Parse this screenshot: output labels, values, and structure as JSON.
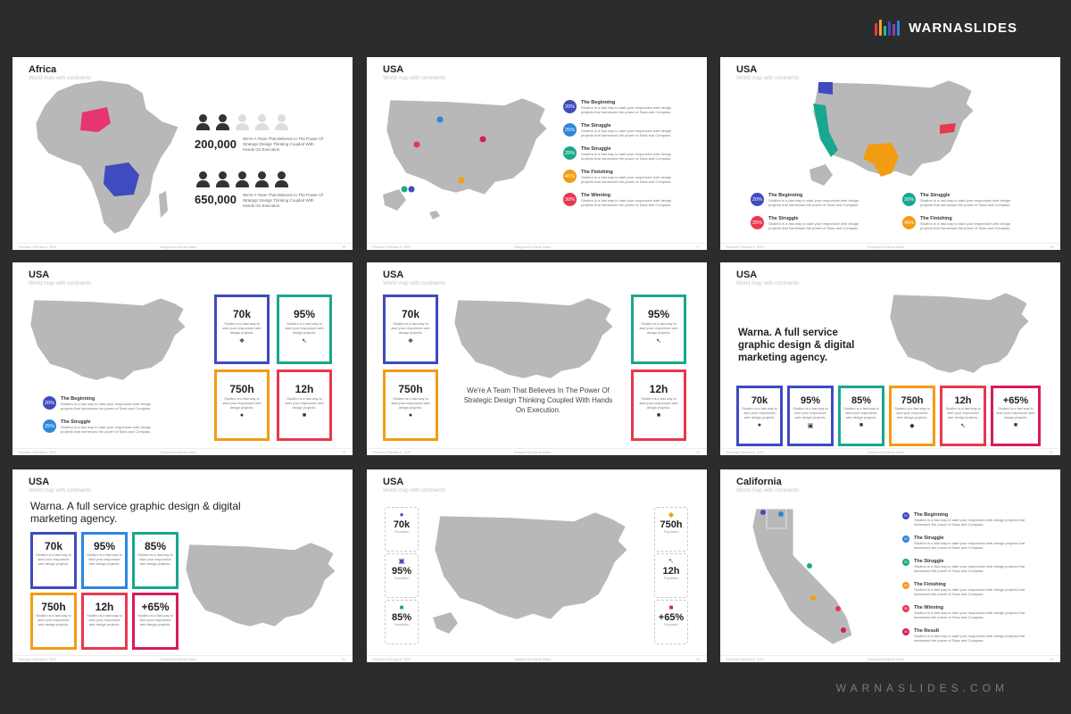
{
  "brand": {
    "name": "WARNASLIDES",
    "footer": "WARNASLIDES.COM",
    "bar_colors": [
      "#e8384f",
      "#f5a623",
      "#2bb5a0",
      "#3f4bbf",
      "#8e44ad",
      "#2e86de"
    ]
  },
  "colors": {
    "blue": "#3f4bbf",
    "teal": "#17a88f",
    "green": "#1fa88a",
    "orange": "#f39c12",
    "red": "#e8384f",
    "pink": "#d81b60",
    "magenta": "#e6356f",
    "map_gray": "#b8b8b8"
  },
  "footer": {
    "date": "Thursday, February 6, 2020",
    "made_by": "Designed by Warna Slides"
  },
  "slides": {
    "s1": {
      "title": "Africa",
      "subtitle": "World map with continents",
      "stat1": {
        "value": "200,000",
        "desc": "We're A Team That Believes In The Power Of Strategic Design Thinking Coupled With Hands On Execution."
      },
      "stat2": {
        "value": "650,000",
        "desc": "We're A Team That Believes In The Power Of Strategic Design Thinking Coupled With Hands On Execution."
      },
      "page": "16"
    },
    "s2": {
      "title": "USA",
      "subtitle": "World map with continents",
      "items": [
        {
          "pct": "20%",
          "title": "The Beginning",
          "desc": "Studbro is a fast way to start your responsive web design projects that harnesses the power of Sass and Compass."
        },
        {
          "pct": "25%",
          "title": "The Struggle",
          "desc": "Studbro is a fast way to start your responsive web design projects that harnesses the power of Sass and Compass."
        },
        {
          "pct": "20%",
          "title": "The Struggle",
          "desc": "Studbro is a fast way to start your responsive web design projects that harnesses the power of Sass and Compass."
        },
        {
          "pct": "45%",
          "title": "The Finishing",
          "desc": "Studbro is a fast way to start your responsive web design projects that harnesses the power of Sass and Compass."
        },
        {
          "pct": "30%",
          "title": "The Winning",
          "desc": "Studbro is a fast way to start your responsive web design projects that harnesses the power of Sass and Compass."
        }
      ],
      "page": "17"
    },
    "s3": {
      "title": "USA",
      "subtitle": "World map with continents",
      "items": [
        {
          "pct": "20%",
          "title": "The Beginning",
          "desc": "Studbro is a fast way to start your responsive web design projects that harnesses the power of Sass and Compass."
        },
        {
          "pct": "25%",
          "title": "The Struggle",
          "desc": "Studbro is a fast way to start your responsive web design projects that harnesses the power of Sass and Compass."
        },
        {
          "pct": "20%",
          "title": "The Struggle",
          "desc": "Studbro is a fast way to start your responsive web design projects that harnesses the power of Sass and Compass."
        },
        {
          "pct": "45%",
          "title": "The Finishing",
          "desc": "Studbro is a fast way to start your responsive web design projects that harnesses the power of Sass and Compass."
        }
      ],
      "page": "18"
    },
    "s4": {
      "title": "USA",
      "subtitle": "World map with continents",
      "items": [
        {
          "pct": "20%",
          "title": "The Beginning",
          "desc": "Studbro is a fast way to start your responsive web design projects that harnesses the power of Sass and Compass."
        },
        {
          "pct": "25%",
          "title": "The Struggle",
          "desc": "Studbro is a fast way to start your responsive web design projects that harnesses the power of Sass and Compass."
        }
      ],
      "boxes": [
        {
          "value": "70k",
          "desc": "Studbro is a fast way to start your responsive web design projects.",
          "icon": "❖"
        },
        {
          "value": "95%",
          "desc": "Studbro is a fast way to start your responsive web design projects.",
          "icon": "↖"
        },
        {
          "value": "750h",
          "desc": "Studbro is a fast way to start your responsive web design projects.",
          "icon": "●"
        },
        {
          "value": "12h",
          "desc": "Studbro is a fast way to start your responsive web design projects.",
          "icon": "■"
        }
      ],
      "page": "19"
    },
    "s5": {
      "title": "USA",
      "subtitle": "World map with continents",
      "boxes": [
        {
          "value": "70k",
          "desc": "Studbro is a fast way to start your responsive web design projects.",
          "icon": "❖"
        },
        {
          "value": "750h",
          "desc": "Studbro is a fast way to start your responsive web design projects.",
          "icon": "●"
        },
        {
          "value": "95%",
          "desc": "Studbro is a fast way to start your responsive web design projects.",
          "icon": "↖"
        },
        {
          "value": "12h",
          "desc": "Studbro is a fast way to start your responsive web design projects.",
          "icon": "■"
        }
      ],
      "tagline": "We're A Team That Believes In The Power Of Strategic Design Thinking Coupled With Hands On Execution.",
      "page": "20"
    },
    "s6": {
      "title": "USA",
      "subtitle": "World map with continents",
      "headline": "Warna. A full service graphic design & digital marketing agency.",
      "boxes": [
        {
          "value": "70k",
          "desc": "Studbro is a fast way to start your responsive web design projects.",
          "icon": "●"
        },
        {
          "value": "95%",
          "desc": "Studbro is a fast way to start your responsive web design projects.",
          "icon": "▣"
        },
        {
          "value": "85%",
          "desc": "Studbro is a fast way to start your responsive web design projects.",
          "icon": "■"
        },
        {
          "value": "750h",
          "desc": "Studbro is a fast way to start your responsive web design projects.",
          "icon": "◆"
        },
        {
          "value": "12h",
          "desc": "Studbro is a fast way to start your responsive web design projects.",
          "icon": "↖"
        },
        {
          "value": "+65%",
          "desc": "Studbro is a fast way to start your responsive web design projects.",
          "icon": "■"
        }
      ],
      "page": "21"
    },
    "s7": {
      "title": "USA",
      "subtitle": "World map with continents",
      "headline": "Warna. A full service graphic design & digital marketing agency.",
      "boxes": [
        {
          "value": "70k",
          "desc": "Studbro is a fast way to start your responsive web design projects."
        },
        {
          "value": "95%",
          "desc": "Studbro is a fast way to start your responsive web design projects."
        },
        {
          "value": "85%",
          "desc": "Studbro is a fast way to start your responsive web design projects."
        },
        {
          "value": "750h",
          "desc": "Studbro is a fast way to start your responsive web design projects."
        },
        {
          "value": "12h",
          "desc": "Studbro is a fast way to start your responsive web design projects."
        },
        {
          "value": "+65%",
          "desc": "Studbro is a fast way to start your responsive web design projects."
        }
      ],
      "page": "22"
    },
    "s8": {
      "title": "USA",
      "subtitle": "World map with continents",
      "cards": [
        {
          "value": "70k",
          "label": "Population",
          "icon": "●"
        },
        {
          "value": "95%",
          "label": "Population",
          "icon": "▣"
        },
        {
          "value": "85%",
          "label": "Population",
          "icon": "■"
        },
        {
          "value": "750h",
          "label": "Population",
          "icon": "◆"
        },
        {
          "value": "12h",
          "label": "Population",
          "icon": "↖"
        },
        {
          "value": "+65%",
          "label": "Population",
          "icon": "■"
        }
      ],
      "page": "23"
    },
    "s9": {
      "title": "California",
      "subtitle": "World map with continents",
      "items": [
        {
          "num": "01",
          "title": "The Beginning",
          "desc": "Studbro is a fast way to start your responsive web design projects that harnesses the power of Sass and Compass."
        },
        {
          "num": "02",
          "title": "The Struggle",
          "desc": "Studbro is a fast way to start your responsive web design projects that harnesses the power of Sass and Compass."
        },
        {
          "num": "03",
          "title": "The Struggle",
          "desc": "Studbro is a fast way to start your responsive web design projects that harnesses the power of Sass and Compass."
        },
        {
          "num": "04",
          "title": "The Finishing",
          "desc": "Studbro is a fast way to start your responsive web design projects that harnesses the power of Sass and Compass."
        },
        {
          "num": "05",
          "title": "The Winning",
          "desc": "Studbro is a fast way to start your responsive web design projects that harnesses the power of Sass and Compass."
        },
        {
          "num": "06",
          "title": "The Result",
          "desc": "Studbro is a fast way to start your responsive web design projects that harnesses the power of Sass and Compass."
        }
      ],
      "page": "24"
    }
  }
}
